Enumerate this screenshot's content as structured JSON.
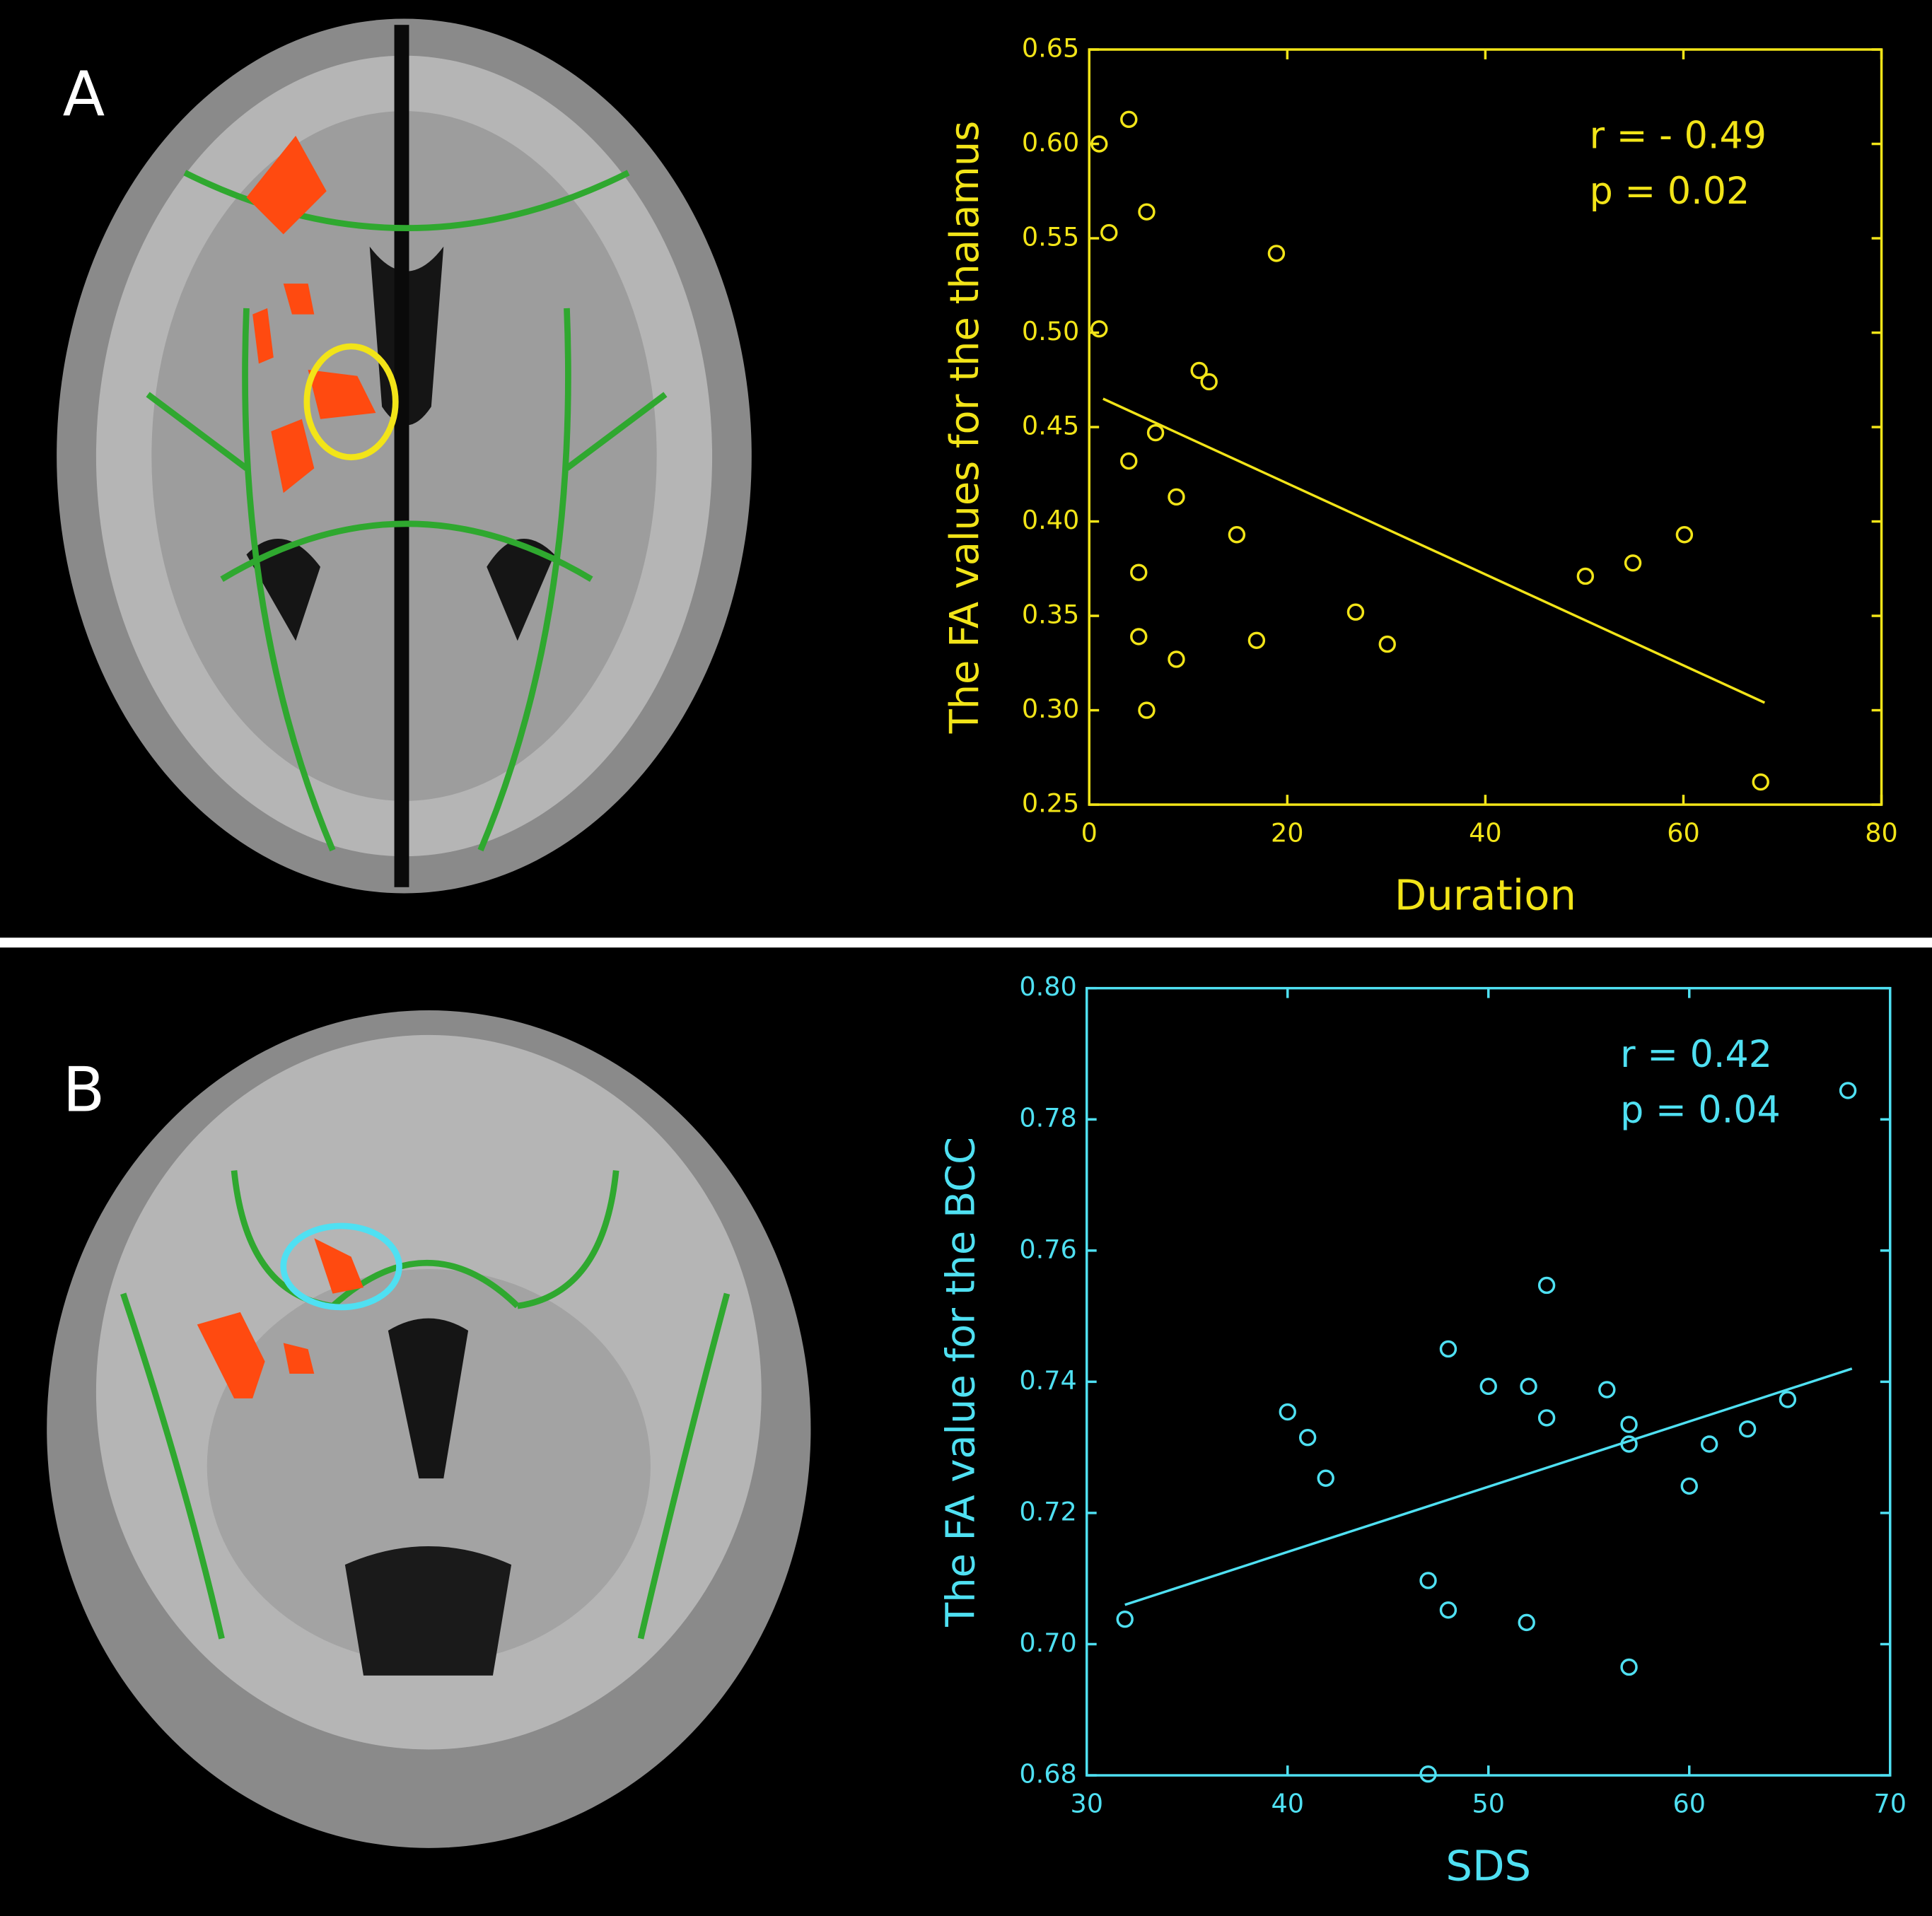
{
  "chart_data": [
    {
      "type": "scatter",
      "panel_label": "A",
      "color": "#f2e418",
      "x_label": "Duration",
      "y_label": "The FA values for the thalamus",
      "annotations": [
        "r = - 0.49",
        "p = 0.02"
      ],
      "x": [
        1,
        2,
        4,
        5.8,
        1,
        18.9,
        11.1,
        12.1,
        6.7,
        4,
        8.8,
        14.9,
        5,
        5,
        8.8,
        5.8,
        16.9,
        26.9,
        30.1,
        50.1,
        54.9,
        60.1,
        67.8
      ],
      "values": [
        0.6,
        0.553,
        0.613,
        0.564,
        0.502,
        0.542,
        0.48,
        0.474,
        0.447,
        0.432,
        0.413,
        0.393,
        0.373,
        0.339,
        0.327,
        0.3,
        0.337,
        0.352,
        0.335,
        0.371,
        0.378,
        0.393,
        0.262
      ],
      "fit": {
        "x": [
          1.4,
          68.2
        ],
        "values": [
          0.465,
          0.304
        ]
      },
      "xlim": [
        0,
        80
      ],
      "xticks": [
        0,
        20,
        40,
        60,
        80
      ],
      "ylim": [
        0.25,
        0.65
      ],
      "yticks": [
        0.25,
        {
          "value": 0.3,
          "label": "0.30"
        },
        0.35,
        {
          "value": 0.4,
          "label": "0.40"
        },
        0.45,
        {
          "value": 0.5,
          "label": "0.50"
        },
        0.55,
        {
          "value": 0.6,
          "label": "0.60"
        },
        0.65
      ]
    },
    {
      "type": "scatter",
      "panel_label": "B",
      "color": "#4fe0f2",
      "x_label": "SDS",
      "y_label": "The FA value for the BCC",
      "annotations": [
        "r = 0.42",
        "p = 0.04"
      ],
      "x": [
        31.9,
        40,
        41,
        41.9,
        47,
        48,
        47,
        48,
        50,
        52,
        52.9,
        52.9,
        51.9,
        55.9,
        57,
        57,
        57,
        60,
        61,
        62.9,
        64.9,
        67.9
      ],
      "values": [
        0.7038,
        0.7354,
        0.7315,
        0.7253,
        0.7097,
        0.7052,
        0.6802,
        0.745,
        0.7393,
        0.7393,
        0.7547,
        0.7345,
        0.7033,
        0.7388,
        0.7335,
        0.7305,
        0.6965,
        0.7241,
        0.7305,
        0.7328,
        0.7373,
        0.7844
      ],
      "fit": {
        "x": [
          31.9,
          68.1
        ],
        "values": [
          0.706,
          0.742
        ]
      },
      "xlim": [
        30,
        70
      ],
      "xticks": [
        30,
        40,
        50,
        60,
        70
      ],
      "ylim": [
        0.68,
        0.8
      ],
      "yticks": [
        0.68,
        {
          "value": 0.7,
          "label": "0.70"
        },
        0.72,
        0.74,
        0.76,
        0.78,
        {
          "value": 0.8,
          "label": "0.80"
        }
      ]
    }
  ]
}
